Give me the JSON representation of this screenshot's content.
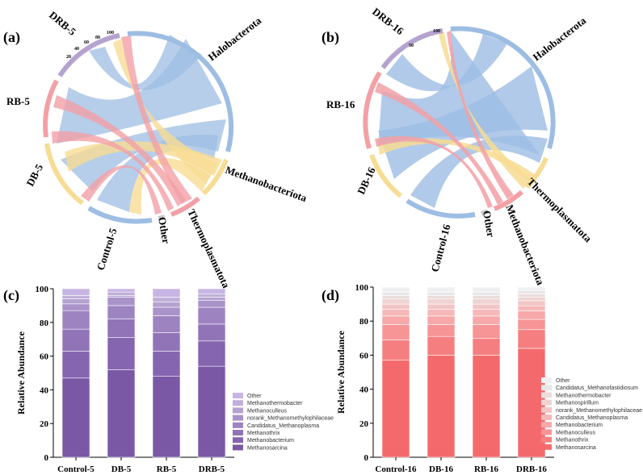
{
  "chord_panels": [
    {
      "label": "(a)",
      "segments": [
        "Halobacterota",
        "Methanobacteriota",
        "Thermoplasmatota",
        "Other",
        "Control-5",
        "DB-5",
        "RB-5",
        "DRB-5"
      ],
      "ticks": [
        "100",
        "80",
        "60",
        "40",
        "20"
      ]
    },
    {
      "label": "(b)",
      "segments": [
        "Halobacterota",
        "Thermoplasmatota",
        "Methanobacteriota",
        "Other",
        "Control-16",
        "DB-16",
        "RB-16",
        "DRB-16"
      ],
      "ticks": [
        "100",
        "50"
      ]
    }
  ],
  "colors": {
    "halobacterota": "#9dbde3",
    "methanobacteriota": "#f2a0a6",
    "thermoplasmatota": "#f7dc93",
    "other": "#c8c8c8",
    "purple_ring": "#b5a3cf"
  },
  "chart_data": [
    {
      "panel": "(c)",
      "type": "bar",
      "stacked": true,
      "categories": [
        "Control-5",
        "DB-5",
        "RB-5",
        "DRB-5"
      ],
      "ylabel": "Relative Abundance",
      "ylim": [
        0,
        100
      ],
      "yticks": [
        "0",
        "20",
        "40",
        "60",
        "80",
        "100"
      ],
      "legend_position": "right-bottom",
      "series": [
        {
          "name": "Methanosarcina",
          "values": [
            47,
            52,
            48,
            54
          ],
          "color": "#7a58a6"
        },
        {
          "name": "Methanobacterium",
          "values": [
            16,
            19,
            15,
            15
          ],
          "color": "#8565b0"
        },
        {
          "name": "Methanothrix",
          "values": [
            13,
            11,
            11,
            10
          ],
          "color": "#9174b8"
        },
        {
          "name": "Candidatus_Methanoplasma",
          "values": [
            11,
            8,
            10,
            10
          ],
          "color": "#9d84c1"
        },
        {
          "name": "norank_Methanomethylophilaceae",
          "values": [
            4,
            5,
            5,
            4
          ],
          "color": "#a993c9"
        },
        {
          "name": "Methanoculleus",
          "values": [
            3,
            1,
            3,
            2
          ],
          "color": "#b4a2d1"
        },
        {
          "name": "Methanothermobacter",
          "values": [
            2,
            2,
            3,
            2
          ],
          "color": "#bfb0d9"
        },
        {
          "name": "Other",
          "values": [
            4,
            2,
            5,
            3
          ],
          "color": "#c7b5e3"
        }
      ]
    },
    {
      "panel": "(d)",
      "type": "bar",
      "stacked": true,
      "categories": [
        "Control-16",
        "DB-16",
        "RB-16",
        "DRB-16"
      ],
      "ylabel": "Relative Abundance",
      "ylim": [
        0,
        100
      ],
      "yticks": [
        "0",
        "20",
        "40",
        "60",
        "80",
        "100"
      ],
      "legend_position": "right-bottom",
      "series": [
        {
          "name": "Methanosarcina",
          "values": [
            57,
            60,
            60,
            64
          ],
          "color": "#f46a6c"
        },
        {
          "name": "Methanothrix",
          "values": [
            12,
            11,
            10,
            11
          ],
          "color": "#f57f80"
        },
        {
          "name": "Methanoculleus",
          "values": [
            9,
            7,
            8,
            6
          ],
          "color": "#f69496"
        },
        {
          "name": "Methanobacterium",
          "values": [
            5,
            5,
            5,
            5
          ],
          "color": "#f7a8a9"
        },
        {
          "name": "Candidatus_Methanoplasma",
          "values": [
            4,
            4,
            4,
            3
          ],
          "color": "#f6b8b8"
        },
        {
          "name": "norank_Methanomethylophilaceae",
          "values": [
            3,
            3,
            3,
            3
          ],
          "color": "#f2c6c6"
        },
        {
          "name": "Methanospirillum",
          "values": [
            3,
            3,
            3,
            2
          ],
          "color": "#efd3d3"
        },
        {
          "name": "Methanothermobacter",
          "values": [
            2,
            2,
            2,
            2
          ],
          "color": "#ecdcdc"
        },
        {
          "name": "Candidatus_Methanofastidiosum",
          "values": [
            2,
            2,
            2,
            2
          ],
          "color": "#e8e6e6"
        },
        {
          "name": "Other",
          "values": [
            3,
            3,
            3,
            2
          ],
          "color": "#eef0f2"
        }
      ]
    }
  ]
}
